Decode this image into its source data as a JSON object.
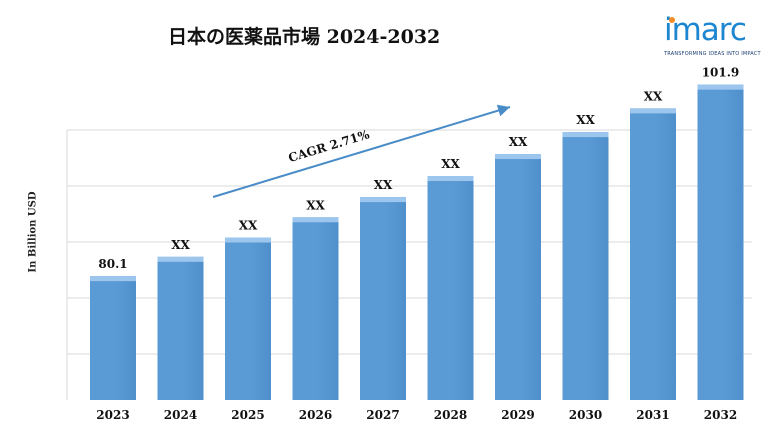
{
  "title": "日本の医薬品市場 2024-2032",
  "logo": {
    "word": "imarc",
    "tagline": "TRANSFORMING IDEAS INTO IMPACT"
  },
  "colors": {
    "bar": "#5b9bd5",
    "bar_top": "#9cc6ee",
    "arrow": "#4a8cc8",
    "grid": "#d9d9d9"
  },
  "annotation": {
    "cagr": "CAGR 2.71%"
  },
  "chart_data": {
    "type": "bar",
    "title": "日本の医薬品市場 2024-2032",
    "xlabel": "",
    "ylabel": "In Billion USD",
    "categories": [
      "2023",
      "2024",
      "2025",
      "2026",
      "2027",
      "2028",
      "2029",
      "2030",
      "2031",
      "2032"
    ],
    "values": [
      80.1,
      82.3,
      84.5,
      86.8,
      89.1,
      91.5,
      94.0,
      96.5,
      99.2,
      101.9
    ],
    "data_labels": [
      "80.1",
      "XX",
      "XX",
      "XX",
      "XX",
      "XX",
      "XX",
      "XX",
      "XX",
      "101.9"
    ],
    "ylim": [
      66,
      103
    ],
    "grid": true,
    "legend": "none"
  }
}
